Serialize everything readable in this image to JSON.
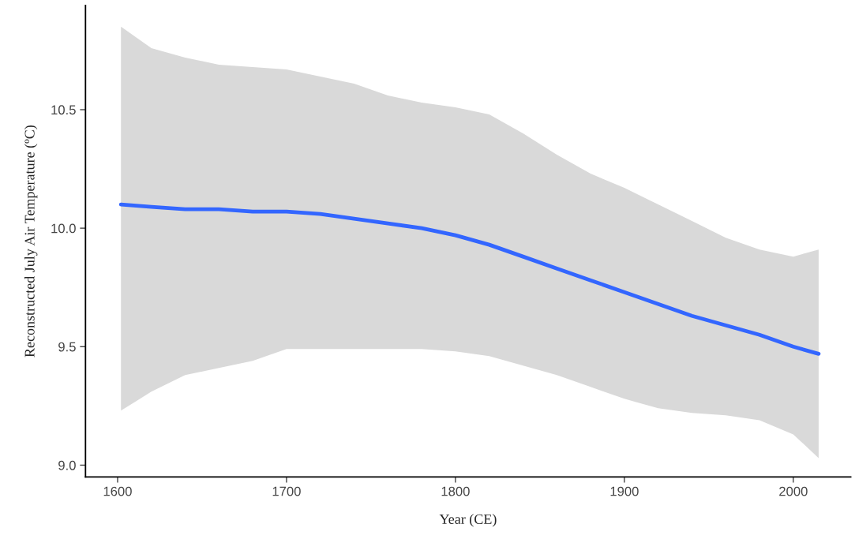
{
  "chart_data": {
    "type": "line",
    "xlabel": "Year (CE)",
    "ylabel": "Reconstructed July Air Temperature (ºC)",
    "x": [
      1602,
      1620,
      1640,
      1660,
      1680,
      1700,
      1720,
      1740,
      1760,
      1780,
      1800,
      1820,
      1840,
      1860,
      1880,
      1900,
      1920,
      1940,
      1960,
      1980,
      2000,
      2015
    ],
    "series": [
      {
        "color": "#3366ff",
        "values": [
          10.1,
          10.09,
          10.08,
          10.08,
          10.07,
          10.07,
          10.06,
          10.04,
          10.02,
          10.0,
          9.97,
          9.93,
          9.88,
          9.83,
          9.78,
          9.73,
          9.68,
          9.63,
          9.59,
          9.55,
          9.5,
          9.47
        ],
        "upper": [
          10.85,
          10.76,
          10.72,
          10.69,
          10.68,
          10.67,
          10.64,
          10.61,
          10.56,
          10.53,
          10.51,
          10.48,
          10.4,
          10.31,
          10.23,
          10.17,
          10.1,
          10.03,
          9.96,
          9.91,
          9.88,
          9.91
        ],
        "lower": [
          9.23,
          9.31,
          9.38,
          9.41,
          9.44,
          9.49,
          9.49,
          9.49,
          9.49,
          9.49,
          9.48,
          9.46,
          9.42,
          9.38,
          9.33,
          9.28,
          9.24,
          9.22,
          9.21,
          9.19,
          9.13,
          9.03
        ]
      }
    ],
    "xlim": [
      1581,
      2034
    ],
    "ylim": [
      8.95,
      10.94
    ],
    "xticks": [
      1600,
      1700,
      1800,
      1900,
      2000
    ],
    "yticks": [
      {
        "value": 9.0,
        "label": "9.0"
      },
      {
        "value": 9.5,
        "label": "9.5"
      },
      {
        "value": 10.0,
        "label": "10.0"
      },
      {
        "value": 10.5,
        "label": "10.5"
      }
    ],
    "grid": false,
    "legend": false
  }
}
